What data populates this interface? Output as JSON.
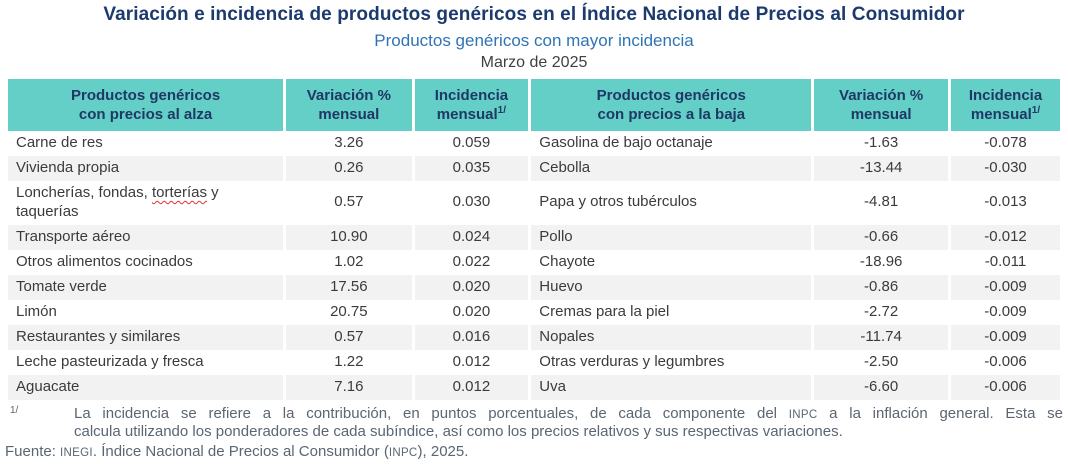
{
  "title": "Variación e incidencia de productos genéricos en el Índice Nacional de Precios al Consumidor",
  "subtitle": "Productos genéricos con mayor incidencia",
  "period": "Marzo de 2025",
  "colors": {
    "header_bg": "#63CFC6",
    "title_navy": "#1C3A6E",
    "subtitle_blue": "#2E74B5",
    "row_stripe": "#F2F2F2",
    "footnote_gray": "#5A6672",
    "spellcheck_squiggle": "#E3342F"
  },
  "table": {
    "headers": [
      {
        "label": "Productos genéricos\ncon precios al alza"
      },
      {
        "label": "Variación %\nmensual"
      },
      {
        "label": "Incidencia\nmensual",
        "sup": "1/"
      },
      {
        "label": "Productos genéricos\ncon precios a la baja"
      },
      {
        "label": "Variación %\nmensual"
      },
      {
        "label": "Incidencia\nmensual",
        "sup": "1/"
      }
    ],
    "rows": [
      {
        "alza_name": "Carne de res",
        "alza_var": "3.26",
        "alza_inc": "0.059",
        "baja_name": "Gasolina de bajo octanaje",
        "baja_var": "-1.63",
        "baja_inc": "-0.078"
      },
      {
        "alza_name": "Vivienda propia",
        "alza_var": "0.26",
        "alza_inc": "0.035",
        "baja_name": "Cebolla",
        "baja_var": "-13.44",
        "baja_inc": "-0.030"
      },
      {
        "alza_name": "Loncherías, fondas, torterías y taquerías",
        "alza_wavy_word": "torterías",
        "alza_var": "0.57",
        "alza_inc": "0.030",
        "baja_name": "Papa y otros tubérculos",
        "baja_var": "-4.81",
        "baja_inc": "-0.013"
      },
      {
        "alza_name": "Transporte aéreo",
        "alza_var": "10.90",
        "alza_inc": "0.024",
        "baja_name": "Pollo",
        "baja_var": "-0.66",
        "baja_inc": "-0.012"
      },
      {
        "alza_name": "Otros alimentos cocinados",
        "alza_var": "1.02",
        "alza_inc": "0.022",
        "baja_name": "Chayote",
        "baja_var": "-18.96",
        "baja_inc": "-0.011"
      },
      {
        "alza_name": "Tomate verde",
        "alza_var": "17.56",
        "alza_inc": "0.020",
        "baja_name": "Huevo",
        "baja_var": "-0.86",
        "baja_inc": "-0.009"
      },
      {
        "alza_name": "Limón",
        "alza_var": "20.75",
        "alza_inc": "0.020",
        "baja_name": "Cremas para la piel",
        "baja_var": "-2.72",
        "baja_inc": "-0.009"
      },
      {
        "alza_name": "Restaurantes y similares",
        "alza_var": "0.57",
        "alza_inc": "0.016",
        "baja_name": "Nopales",
        "baja_var": "-11.74",
        "baja_inc": "-0.009"
      },
      {
        "alza_name": "Leche pasteurizada y fresca",
        "alza_var": "1.22",
        "alza_inc": "0.012",
        "baja_name": "Otras verduras y legumbres",
        "baja_var": "-2.50",
        "baja_inc": "-0.006"
      },
      {
        "alza_name": "Aguacate",
        "alza_var": "7.16",
        "alza_inc": "0.012",
        "baja_name": "Uva",
        "baja_var": "-6.60",
        "baja_inc": "-0.006"
      }
    ]
  },
  "footnote": {
    "marker": "1/",
    "line1": "La incidencia se refiere a la contribución, en puntos porcentuales, de cada componente del INPC a la inflación general. Esta se",
    "line2": "calcula utilizando los ponderadores de cada subíndice, así como los precios relativos y sus respectivas variaciones."
  },
  "source": "Fuente: INEGI. Índice Nacional de Precios al Consumidor (INPC), 2025."
}
